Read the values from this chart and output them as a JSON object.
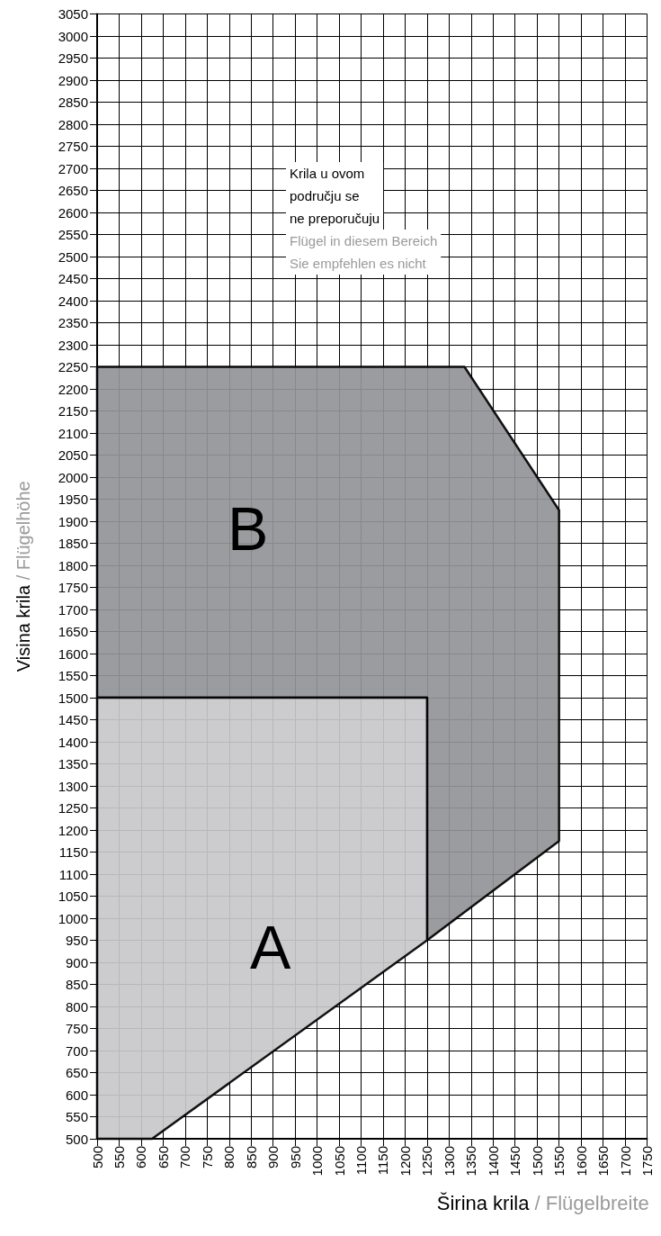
{
  "chart_data": {
    "type": "area",
    "xlabel": "Širina krila / Flügelbreite",
    "ylabel": "Visina krila / Flügelhöhe",
    "xlim": [
      500,
      1750
    ],
    "ylim": [
      500,
      3050
    ],
    "xticks": [
      500,
      550,
      600,
      650,
      700,
      750,
      800,
      850,
      900,
      950,
      1000,
      1050,
      1100,
      1150,
      1200,
      1250,
      1300,
      1350,
      1400,
      1450,
      1500,
      1550,
      1600,
      1650,
      1700,
      1750
    ],
    "yticks": [
      500,
      550,
      600,
      650,
      700,
      750,
      800,
      850,
      900,
      950,
      1000,
      1050,
      1100,
      1150,
      1200,
      1250,
      1300,
      1350,
      1400,
      1450,
      1500,
      1550,
      1600,
      1650,
      1700,
      1750,
      1800,
      1850,
      1900,
      1950,
      2000,
      2050,
      2100,
      2150,
      2200,
      2250,
      2300,
      2350,
      2400,
      2450,
      2500,
      2550,
      2600,
      2650,
      2700,
      2750,
      2800,
      2850,
      2900,
      2950,
      3000,
      3050
    ],
    "grid": true,
    "series": [
      {
        "color": "#939497",
        "x": [
          500,
          1335,
          1550,
          1550,
          1250,
          1250,
          500
        ],
        "values": [
          2250,
          2250,
          1925,
          1175,
          950,
          1500,
          1500
        ]
      },
      {
        "color": "#c8c8ca",
        "x": [
          500,
          500,
          1250,
          1250,
          625
        ],
        "values": [
          500,
          1500,
          1500,
          950,
          500
        ]
      }
    ],
    "annotations": [
      "B",
      "A",
      "Krila u ovom\npodručju se\nne preporučuju",
      "Flügel in diesem Bereich\nSie empfehlen es nicht"
    ]
  }
}
